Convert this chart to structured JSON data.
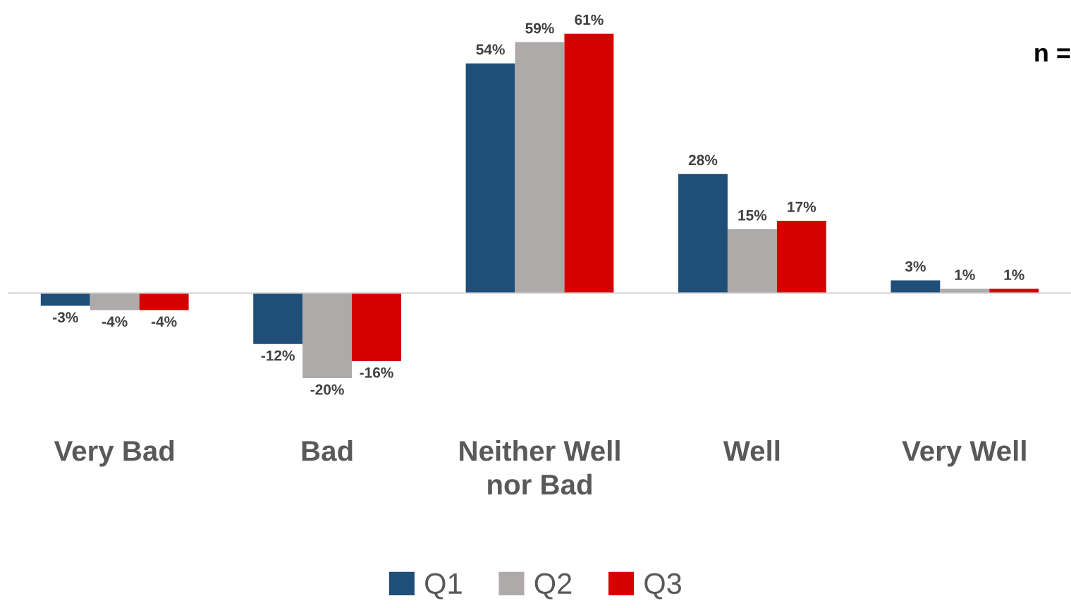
{
  "chart_data": {
    "type": "bar",
    "categories": [
      "Very Bad",
      "Bad",
      "Neither Well\nnor Bad",
      "Well",
      "Very Well"
    ],
    "series": [
      {
        "name": "Q1",
        "color": "#1f4e79",
        "values": [
          -3,
          -12,
          54,
          28,
          3
        ],
        "value_labels": [
          "-3%",
          "-12%",
          "54%",
          "28%",
          "3%"
        ]
      },
      {
        "name": "Q2",
        "color": "#aeaaaa",
        "values": [
          -4,
          -20,
          59,
          15,
          1
        ],
        "value_labels": [
          "-4%",
          "-20%",
          "59%",
          "15%",
          "1%"
        ]
      },
      {
        "name": "Q3",
        "color": "#d50000",
        "values": [
          -4,
          -16,
          61,
          17,
          1
        ],
        "value_labels": [
          "-4%",
          "-16%",
          "61%",
          "17%",
          "1%"
        ]
      }
    ],
    "legend": "bottom",
    "annotations": [
      "n ="
    ]
  }
}
